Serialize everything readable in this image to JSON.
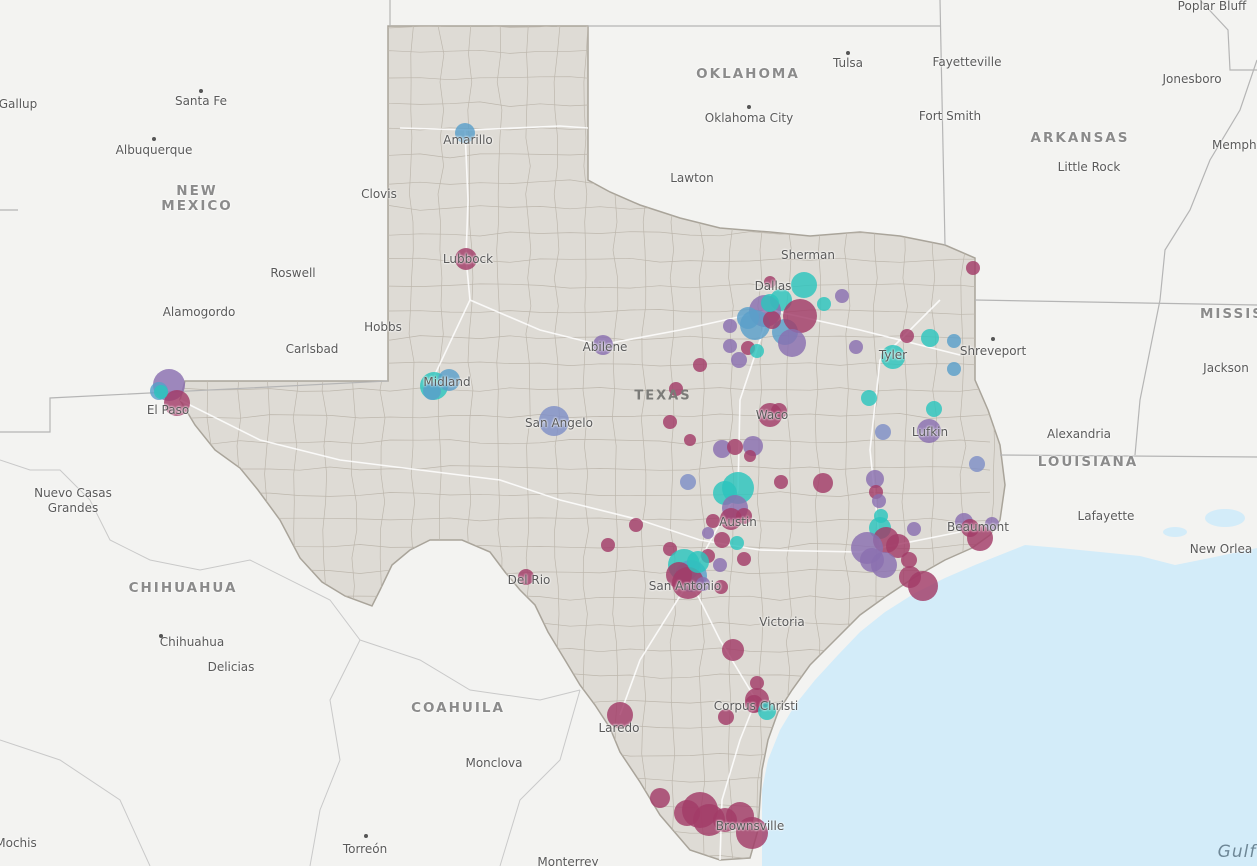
{
  "map": {
    "colors": {
      "land": "#f3f3f1",
      "water": "#d3ecf9",
      "texas_fill": "#dedbd5",
      "county_line": "#bdb7ad",
      "state_border": "#b3b3b3",
      "road": "#ffffff"
    },
    "region_labels": [
      {
        "id": "oklahoma",
        "text": "OKLAHOMA"
      },
      {
        "id": "arkansas",
        "text": "ARKANSAS"
      },
      {
        "id": "new-mexico",
        "text": "NEW\nMEXICO"
      },
      {
        "id": "texas",
        "text": "TEXAS"
      },
      {
        "id": "louisiana",
        "text": "LOUISIANA"
      },
      {
        "id": "chihuahua-state",
        "text": "CHIHUAHUA"
      },
      {
        "id": "coahuila",
        "text": "COAHUILA"
      },
      {
        "id": "mississippi",
        "text": "MISSIS"
      }
    ],
    "water_labels": [
      {
        "id": "gulf",
        "text": "Gulf"
      }
    ],
    "city_labels": [
      {
        "id": "poplar-bluff",
        "text": "Poplar Bluff"
      },
      {
        "id": "tulsa",
        "text": "Tulsa"
      },
      {
        "id": "fayetteville",
        "text": "Fayetteville"
      },
      {
        "id": "jonesboro",
        "text": "Jonesboro"
      },
      {
        "id": "gallup",
        "text": "Gallup"
      },
      {
        "id": "santa-fe",
        "text": "Santa Fe"
      },
      {
        "id": "oklahoma-city",
        "text": "Oklahoma City"
      },
      {
        "id": "fort-smith",
        "text": "Fort Smith"
      },
      {
        "id": "memphis",
        "text": "Memphi"
      },
      {
        "id": "albuquerque",
        "text": "Albuquerque"
      },
      {
        "id": "amarillo",
        "text": "Amarillo"
      },
      {
        "id": "little-rock",
        "text": "Little Rock"
      },
      {
        "id": "lawton",
        "text": "Lawton"
      },
      {
        "id": "clovis",
        "text": "Clovis"
      },
      {
        "id": "sherman",
        "text": "Sherman"
      },
      {
        "id": "lubbock",
        "text": "Lubbock"
      },
      {
        "id": "roswell",
        "text": "Roswell"
      },
      {
        "id": "dallas",
        "text": "Dallas"
      },
      {
        "id": "alamogordo",
        "text": "Alamogordo"
      },
      {
        "id": "hobbs",
        "text": "Hobbs"
      },
      {
        "id": "carlsbad",
        "text": "Carlsbad"
      },
      {
        "id": "abilene",
        "text": "Abilene"
      },
      {
        "id": "tyler",
        "text": "Tyler"
      },
      {
        "id": "shreveport",
        "text": "Shreveport"
      },
      {
        "id": "jackson",
        "text": "Jackson"
      },
      {
        "id": "midland",
        "text": "Midland"
      },
      {
        "id": "el-paso",
        "text": "El Paso"
      },
      {
        "id": "waco",
        "text": "Waco"
      },
      {
        "id": "san-angelo",
        "text": "San Angelo"
      },
      {
        "id": "lufkin",
        "text": "Lufkin"
      },
      {
        "id": "alexandria",
        "text": "Alexandria"
      },
      {
        "id": "nuevo-casas-grandes",
        "text": "Nuevo Casas\nGrandes"
      },
      {
        "id": "austin",
        "text": "Austin"
      },
      {
        "id": "lafayette",
        "text": "Lafayette"
      },
      {
        "id": "beaumont",
        "text": "Beaumont"
      },
      {
        "id": "new-orleans",
        "text": "New Orlea"
      },
      {
        "id": "del-rio",
        "text": "Del Rio"
      },
      {
        "id": "san-antonio",
        "text": "San Antonio"
      },
      {
        "id": "victoria",
        "text": "Victoria"
      },
      {
        "id": "chihuahua-city",
        "text": "Chihuahua"
      },
      {
        "id": "delicias",
        "text": "Delicias"
      },
      {
        "id": "corpus-christi",
        "text": "Corpus Christi"
      },
      {
        "id": "laredo",
        "text": "Laredo"
      },
      {
        "id": "monclova",
        "text": "Monclova"
      },
      {
        "id": "brownsville",
        "text": "Brownsville"
      },
      {
        "id": "mochis",
        "text": "Mochis"
      },
      {
        "id": "torreon",
        "text": "Torreón"
      },
      {
        "id": "monterrey",
        "text": "Monterrey"
      }
    ],
    "bubbles": {
      "palette": {
        "maroon": "#a23c68",
        "purple": "#8a6fb0",
        "blue": "#5a9fc9",
        "teal": "#2cc4bd",
        "slate": "#7f8fc6"
      },
      "opacity": 0.82,
      "count_note": "data points rendered as proportional circles"
    }
  }
}
